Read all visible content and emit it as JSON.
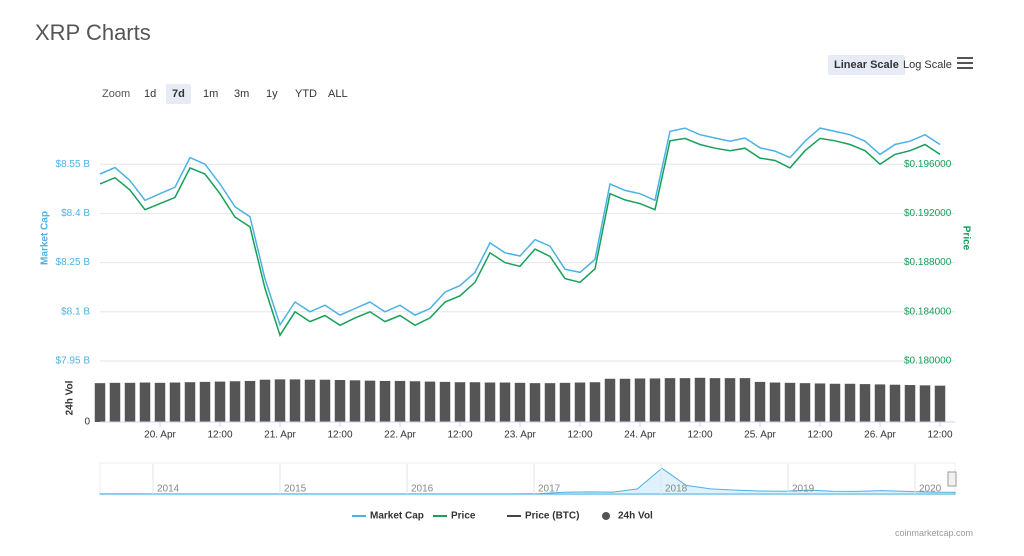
{
  "page_title": "XRP Charts",
  "zoom": {
    "label": "Zoom",
    "buttons": [
      "1d",
      "7d",
      "1m",
      "3m",
      "1y",
      "YTD",
      "ALL"
    ]
  },
  "scale_buttons": [
    "Linear Scale",
    "Log Scale"
  ],
  "credits": "coinmarketcap.com",
  "chart_data": {
    "type": "line",
    "x": [
      -12,
      -9,
      -6,
      -3,
      0,
      3,
      6,
      9,
      12,
      15,
      18,
      21,
      24,
      27,
      30,
      33,
      36,
      39,
      42,
      45,
      48,
      51,
      54,
      57,
      60,
      63,
      66,
      69,
      72,
      75,
      78,
      81,
      84,
      87,
      90,
      93,
      96,
      99,
      102,
      105,
      108,
      111,
      114,
      117,
      120,
      123,
      126,
      129,
      132,
      135,
      138,
      141,
      144,
      147,
      150,
      153,
      156
    ],
    "xlim": [
      -12,
      159
    ],
    "xticks": [
      {
        "value": 0,
        "label": "20. Apr"
      },
      {
        "value": 12,
        "label": "12:00"
      },
      {
        "value": 24,
        "label": "21. Apr"
      },
      {
        "value": 36,
        "label": "12:00"
      },
      {
        "value": 48,
        "label": "22. Apr"
      },
      {
        "value": 60,
        "label": "12:00"
      },
      {
        "value": 72,
        "label": "23. Apr"
      },
      {
        "value": 84,
        "label": "12:00"
      },
      {
        "value": 96,
        "label": "24. Apr"
      },
      {
        "value": 108,
        "label": "12:00"
      },
      {
        "value": 120,
        "label": "25. Apr"
      },
      {
        "value": 132,
        "label": "12:00"
      },
      {
        "value": 144,
        "label": "26. Apr"
      },
      {
        "value": 156,
        "label": "12:00"
      }
    ],
    "ylabel": "Market Cap",
    "ylim": [
      7.95,
      8.7
    ],
    "yticks": [
      {
        "value": 7.95,
        "label": "$7.95 B"
      },
      {
        "value": 8.1,
        "label": "$8.1 B"
      },
      {
        "value": 8.25,
        "label": "$8.25 B"
      },
      {
        "value": 8.4,
        "label": "$8.4 B"
      },
      {
        "value": 8.55,
        "label": "$8.55 B"
      }
    ],
    "y2label": "Price",
    "y2lim": [
      0.18,
      0.2
    ],
    "y2ticks": [
      {
        "value": 0.18,
        "label": "$0.180000"
      },
      {
        "value": 0.184,
        "label": "$0.184000"
      },
      {
        "value": 0.188,
        "label": "$0.188000"
      },
      {
        "value": 0.192,
        "label": "$0.192000"
      },
      {
        "value": 0.196,
        "label": "$0.196000"
      }
    ],
    "grid": true,
    "series": [
      {
        "name": "Market Cap",
        "color": "#4bb2e6",
        "values": [
          8.52,
          8.54,
          8.5,
          8.44,
          8.46,
          8.48,
          8.57,
          8.55,
          8.49,
          8.42,
          8.39,
          8.2,
          8.06,
          8.13,
          8.1,
          8.12,
          8.09,
          8.11,
          8.13,
          8.1,
          8.12,
          8.09,
          8.11,
          8.16,
          8.18,
          8.22,
          8.31,
          8.28,
          8.27,
          8.32,
          8.3,
          8.23,
          8.22,
          8.26,
          8.49,
          8.47,
          8.46,
          8.44,
          8.65,
          8.66,
          8.64,
          8.63,
          8.62,
          8.63,
          8.6,
          8.59,
          8.57,
          8.62,
          8.66,
          8.65,
          8.64,
          8.62,
          8.58,
          8.61,
          8.62,
          8.64,
          8.61
        ]
      },
      {
        "name": "Price",
        "color": "#16a05a",
        "axis": "y2",
        "values": [
          0.1944,
          0.1949,
          0.1939,
          0.1923,
          0.1928,
          0.1933,
          0.1957,
          0.1952,
          0.1936,
          0.1917,
          0.1909,
          0.1859,
          0.1821,
          0.184,
          0.1832,
          0.1837,
          0.1829,
          0.1835,
          0.184,
          0.1832,
          0.1837,
          0.1829,
          0.1835,
          0.1848,
          0.1853,
          0.1864,
          0.1888,
          0.188,
          0.1877,
          0.1891,
          0.1885,
          0.1867,
          0.1864,
          0.1875,
          0.1936,
          0.1931,
          0.1928,
          0.1923,
          0.1979,
          0.1981,
          0.1976,
          0.1973,
          0.1971,
          0.1973,
          0.1965,
          0.1963,
          0.1957,
          0.1971,
          0.1981,
          0.1979,
          0.1976,
          0.1971,
          0.196,
          0.1968,
          0.1971,
          0.1976,
          0.1968
        ]
      }
    ],
    "hidden_series": [
      {
        "name": "Price (BTC)",
        "color": "#444444"
      }
    ],
    "volume": {
      "name": "24h Vol",
      "color": "#555555",
      "ylim": [
        0,
        1.5
      ],
      "yticks": [
        0
      ],
      "values": [
        1.24,
        1.25,
        1.25,
        1.26,
        1.25,
        1.26,
        1.27,
        1.28,
        1.29,
        1.3,
        1.31,
        1.35,
        1.36,
        1.36,
        1.35,
        1.35,
        1.34,
        1.33,
        1.32,
        1.31,
        1.31,
        1.3,
        1.29,
        1.28,
        1.27,
        1.27,
        1.26,
        1.26,
        1.25,
        1.24,
        1.24,
        1.25,
        1.26,
        1.27,
        1.38,
        1.38,
        1.39,
        1.39,
        1.4,
        1.4,
        1.41,
        1.4,
        1.4,
        1.4,
        1.28,
        1.26,
        1.25,
        1.24,
        1.23,
        1.22,
        1.22,
        1.21,
        1.2,
        1.19,
        1.18,
        1.17,
        1.16
      ]
    },
    "navigator": {
      "labels": [
        "2014",
        "2015",
        "2016",
        "2017",
        "2018",
        "2019",
        "2020"
      ],
      "color": "#4bb2e6",
      "ylim": [
        0,
        3.5
      ],
      "values": [
        0.01,
        0.02,
        0.01,
        0.01,
        0.01,
        0.01,
        0.01,
        0.01,
        0.01,
        0.01,
        0.01,
        0.01,
        0.01,
        0.01,
        0.01,
        0.01,
        0.01,
        0.01,
        0.05,
        0.2,
        0.25,
        0.22,
        0.6,
        3.0,
        1.0,
        0.6,
        0.45,
        0.35,
        0.32,
        0.45,
        0.32,
        0.3,
        0.4,
        0.3,
        0.22,
        0.21
      ]
    }
  }
}
